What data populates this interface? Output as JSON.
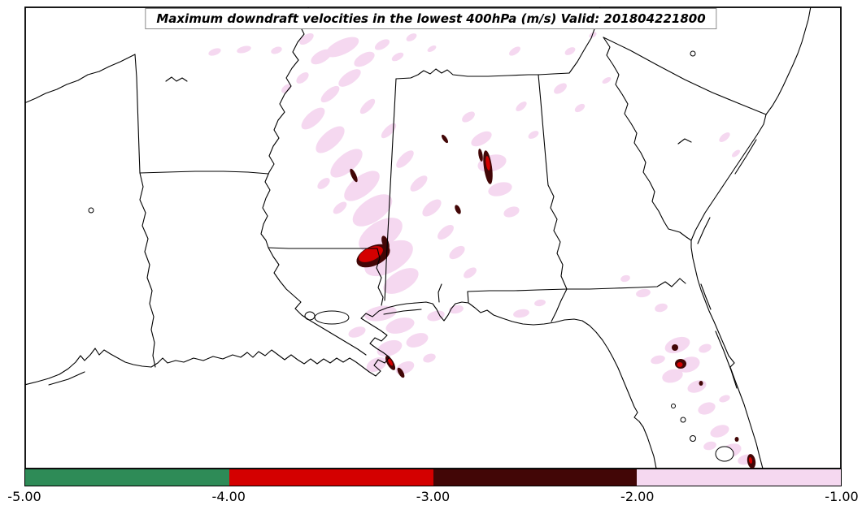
{
  "figure": {
    "title": "Maximum downdraft velocities in the lowest 400hPa (m/s) Valid: 201804221800",
    "background_color": "#ffffff",
    "frame_color": "#000000"
  },
  "colorbar": {
    "orientation": "horizontal",
    "units": "m/s",
    "segments": [
      {
        "from": -5.0,
        "to": -4.0,
        "color": "#2e8b57",
        "name": "green"
      },
      {
        "from": -4.0,
        "to": -3.0,
        "color": "#d40000",
        "name": "red"
      },
      {
        "from": -3.0,
        "to": -2.0,
        "color": "#420606",
        "name": "dark-maroon"
      },
      {
        "from": -2.0,
        "to": -1.0,
        "color": "#f5d8f0",
        "name": "light-pink"
      }
    ],
    "ticks": [
      {
        "value": -5.0,
        "label": "-5.00",
        "position": 0.0
      },
      {
        "value": -4.0,
        "label": "-4.00",
        "position": 0.25
      },
      {
        "value": -3.0,
        "label": "-3.00",
        "position": 0.5
      },
      {
        "value": -2.0,
        "label": "-2.00",
        "position": 0.75
      },
      {
        "value": -1.0,
        "label": "-1.00",
        "position": 1.0
      }
    ]
  },
  "chart_data": {
    "type": "heatmap",
    "title": "Maximum downdraft velocities in the lowest 400hPa (m/s)",
    "valid_time": "201804221800",
    "units": "m/s",
    "variable": "maximum downdraft velocity in lowest 400 hPa",
    "region": "Southeastern United States: eastern Texas, Louisiana, Arkansas, Mississippi, Alabama, Georgia, Tennessee border, Florida, South Carolina, coastal North Carolina, Gulf of Mexico and Atlantic coasts",
    "levels": [
      -5.0,
      -4.0,
      -3.0,
      -2.0,
      -1.0
    ],
    "level_colors": [
      "#2e8b57",
      "#d40000",
      "#420606",
      "#f5d8f0"
    ],
    "legend_position": "bottom",
    "grid": false,
    "observations": [
      "Widespread light-pink shading (-2 to -1 m/s) in a SW-NE band across central Mississippi into Alabama, near the Tennessee border, along the central Gulf Coast, over south Georgia and across the central Florida peninsula",
      "Dark-maroon cores (-3 to -2 m/s): narrow streak in central Alabama, blob at the southwest Mississippi/Alabama border, small streaks near the Mississippi Gulf coast, spots in central and south Florida",
      "Strongest red cores (-4 to -3 m/s): west-central Alabama/Mississippi border blob, central Alabama streak, central Florida spot, south Florida speck",
      "No shading over most of Texas, Arkansas, Louisiana interior, the Carolinas and the ocean"
    ]
  }
}
